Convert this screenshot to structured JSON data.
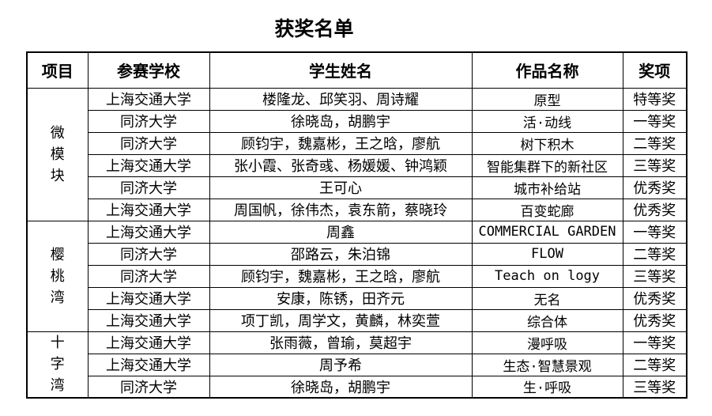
{
  "title": "获奖名单",
  "table": {
    "headers": [
      "项目",
      "参赛学校",
      "学生姓名",
      "作品名称",
      "奖项"
    ],
    "groups": [
      {
        "label": "微模块",
        "rows": [
          {
            "school": "上海交通大学",
            "students": "楼隆龙、邱笑羽、周诗耀",
            "work": "原型",
            "award": "特等奖"
          },
          {
            "school": "同济大学",
            "students": "徐晓岛，胡鹏宇",
            "work": "活·动线",
            "award": "一等奖"
          },
          {
            "school": "同济大学",
            "students": "顾钧宇，魏嘉彬，王之晗，廖航",
            "work": "树下积木",
            "award": "二等奖"
          },
          {
            "school": "上海交通大学",
            "students": "张小霞、张奇彧、杨媛媛、钟鸿颖",
            "work": "智能集群下的新社区",
            "award": "三等奖"
          },
          {
            "school": "同济大学",
            "students": "王可心",
            "work": "城市补给站",
            "award": "优秀奖"
          },
          {
            "school": "上海交通大学",
            "students": "周国帆，徐伟杰，袁东箭，蔡晓玲",
            "work": "百变蛇廊",
            "award": "优秀奖"
          }
        ]
      },
      {
        "label": "樱桃湾",
        "rows": [
          {
            "school": "上海交通大学",
            "students": "周鑫",
            "work": "COMMERCIAL GARDEN",
            "award": "一等奖"
          },
          {
            "school": "同济大学",
            "students": "邵路云，朱泊锦",
            "work": "FLOW",
            "award": "二等奖"
          },
          {
            "school": "同济大学",
            "students": "顾钧宇，魏嘉彬，王之晗，廖航",
            "work": "Teach on logy",
            "award": "三等奖"
          },
          {
            "school": "上海交通大学",
            "students": "安康，陈锈，田齐元",
            "work": "无名",
            "award": "优秀奖"
          },
          {
            "school": "上海交通大学",
            "students": "项丁凯，周学文，黄麟，林奕萱",
            "work": "综合体",
            "award": "优秀奖"
          }
        ]
      },
      {
        "label": "十字湾",
        "rows": [
          {
            "school": "上海交通大学",
            "students": "张雨薇，曾瑜，莫超宇",
            "work": "漫呼吸",
            "award": "一等奖"
          },
          {
            "school": "上海交通大学",
            "students": "周予希",
            "work": "生态·智慧景观",
            "award": "二等奖"
          },
          {
            "school": "同济大学",
            "students": "徐晓岛，胡鹏宇",
            "work": "生·呼吸",
            "award": "三等奖"
          }
        ]
      }
    ]
  },
  "colors": {
    "background": "#ffffff",
    "text": "#000000",
    "border": "#000000"
  }
}
